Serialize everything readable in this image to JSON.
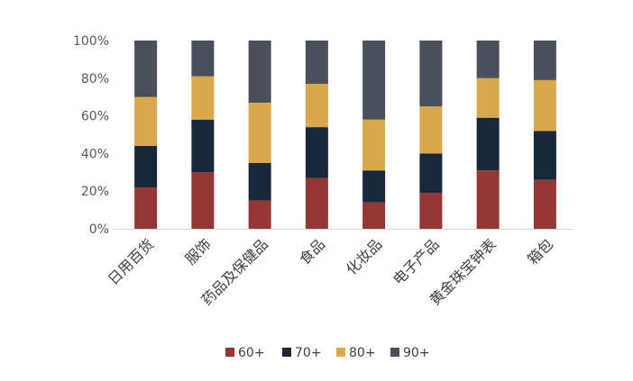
{
  "chart_data": {
    "type": "bar",
    "stacked": true,
    "percent": true,
    "categories": [
      "日用百货",
      "服饰",
      "药品及保健品",
      "食品",
      "化妆品",
      "电子产品",
      "黄金珠宝钟表",
      "箱包"
    ],
    "series": [
      {
        "name": "60+",
        "color": "#943634",
        "values": [
          22,
          30,
          15,
          27,
          14,
          19,
          31,
          26
        ]
      },
      {
        "name": "70+",
        "color": "#17283a",
        "values": [
          22,
          28,
          20,
          27,
          17,
          21,
          28,
          26
        ]
      },
      {
        "name": "80+",
        "color": "#d9a84b",
        "values": [
          26,
          23,
          32,
          23,
          27,
          25,
          21,
          27
        ]
      },
      {
        "name": "90+",
        "color": "#4a4f5c",
        "values": [
          30,
          19,
          33,
          23,
          42,
          35,
          20,
          21
        ]
      }
    ],
    "y_ticks": [
      "0%",
      "20%",
      "40%",
      "60%",
      "80%",
      "100%"
    ],
    "ylim": [
      0,
      100
    ],
    "legend_position": "bottom",
    "grid": false
  }
}
